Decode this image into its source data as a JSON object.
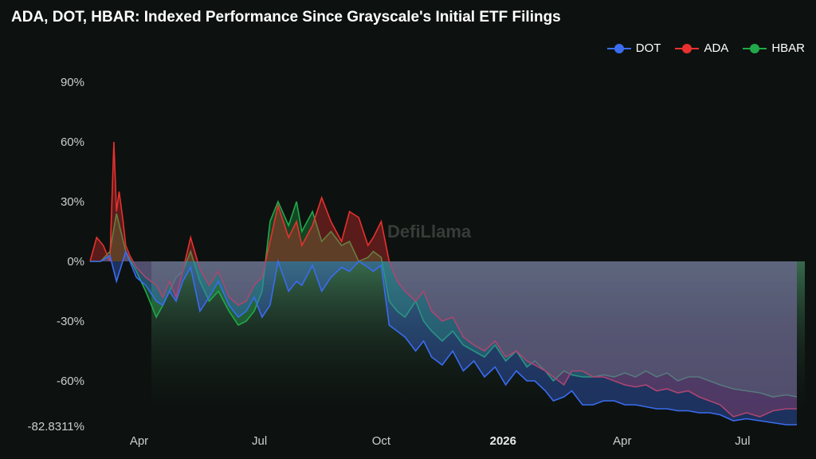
{
  "chart_data": {
    "type": "line",
    "title": "ADA, DOT, HBAR: Indexed Performance Since Grayscale's Initial ETF Filings",
    "watermark": "DefiLlama",
    "y_ticks": [
      "90%",
      "60%",
      "30%",
      "0%",
      "-30%",
      "-60%",
      "-82.8311%"
    ],
    "y_tick_values": [
      90,
      60,
      30,
      0,
      -30,
      -60,
      -82.8311
    ],
    "x_ticks": [
      "Apr",
      "Jul",
      "Oct",
      "2026",
      "Apr",
      "Jul"
    ],
    "x_tick_emphasis": [
      false,
      false,
      false,
      true,
      false,
      false
    ],
    "x_tick_days": [
      37,
      128,
      220,
      312,
      402,
      493
    ],
    "ylim": [
      -82.8311,
      95
    ],
    "xlim": [
      0,
      540
    ],
    "legend_position": "top-right",
    "series": [
      {
        "name": "DOT",
        "color": "#3b6cf0",
        "days": [
          0,
          8,
          15,
          20,
          27,
          35,
          42,
          50,
          55,
          60,
          65,
          70,
          76,
          83,
          90,
          97,
          105,
          112,
          118,
          124,
          130,
          136,
          142,
          150,
          156,
          160,
          168,
          175,
          182,
          190,
          196,
          203,
          210,
          214,
          220,
          226,
          232,
          238,
          246,
          252,
          258,
          266,
          274,
          282,
          290,
          298,
          306,
          314,
          322,
          330,
          336,
          344,
          350,
          358,
          364,
          372,
          380,
          388,
          396,
          404,
          412,
          420,
          428,
          436,
          444,
          452,
          460,
          468,
          476,
          486,
          496,
          506,
          516,
          526,
          534
        ],
        "values": [
          0,
          0,
          3,
          -10,
          5,
          -8,
          -12,
          -20,
          -22,
          -15,
          -20,
          -10,
          -3,
          -25,
          -18,
          -10,
          -22,
          -28,
          -25,
          -18,
          -28,
          -22,
          0,
          -15,
          -10,
          -12,
          -2,
          -15,
          -8,
          -3,
          -5,
          0,
          -3,
          -5,
          -2,
          -32,
          -35,
          -38,
          -45,
          -40,
          -48,
          -52,
          -45,
          -55,
          -50,
          -58,
          -53,
          -62,
          -55,
          -60,
          -60,
          -65,
          -70,
          -68,
          -65,
          -72,
          -72,
          -70,
          -70,
          -72,
          -72,
          -73,
          -74,
          -74,
          -75,
          -75,
          -76,
          -76,
          -77,
          -80,
          -79,
          -80,
          -81,
          -82,
          -82
        ]
      },
      {
        "name": "ADA",
        "color": "#e8302e",
        "days": [
          0,
          5,
          10,
          15,
          18,
          20,
          22,
          25,
          27,
          30,
          35,
          42,
          50,
          55,
          60,
          65,
          70,
          76,
          83,
          90,
          97,
          105,
          112,
          118,
          124,
          130,
          136,
          142,
          150,
          156,
          160,
          168,
          175,
          182,
          190,
          196,
          203,
          210,
          214,
          220,
          226,
          232,
          238,
          246,
          252,
          258,
          266,
          274,
          282,
          290,
          298,
          306,
          314,
          322,
          330,
          336,
          344,
          350,
          358,
          364,
          372,
          380,
          388,
          396,
          404,
          412,
          420,
          428,
          436,
          444,
          452,
          460,
          468,
          476,
          486,
          496,
          506,
          516,
          526,
          534
        ],
        "values": [
          0,
          12,
          8,
          0,
          60,
          25,
          35,
          20,
          8,
          3,
          -3,
          -8,
          -12,
          -18,
          -10,
          -18,
          -5,
          12,
          -4,
          -12,
          -5,
          -18,
          -22,
          -20,
          -12,
          -8,
          10,
          28,
          12,
          20,
          8,
          18,
          32,
          20,
          10,
          25,
          22,
          8,
          12,
          20,
          0,
          -10,
          -15,
          -20,
          -15,
          -25,
          -30,
          -28,
          -38,
          -42,
          -45,
          -40,
          -48,
          -45,
          -50,
          -52,
          -55,
          -58,
          -62,
          -55,
          -55,
          -58,
          -58,
          -60,
          -62,
          -63,
          -62,
          -65,
          -64,
          -66,
          -65,
          -68,
          -70,
          -72,
          -78,
          -76,
          -78,
          -75,
          -74,
          -74
        ]
      },
      {
        "name": "HBAR",
        "color": "#22a84a",
        "days": [
          0,
          8,
          15,
          20,
          27,
          35,
          42,
          50,
          55,
          60,
          65,
          70,
          76,
          83,
          90,
          97,
          105,
          112,
          118,
          124,
          130,
          136,
          142,
          150,
          156,
          160,
          168,
          175,
          182,
          190,
          196,
          203,
          210,
          214,
          220,
          226,
          232,
          238,
          246,
          252,
          258,
          266,
          274,
          282,
          290,
          298,
          306,
          314,
          322,
          330,
          336,
          344,
          350,
          358,
          364,
          372,
          380,
          388,
          396,
          404,
          412,
          420,
          428,
          436,
          444,
          452,
          460,
          468,
          476,
          486,
          496,
          506,
          516,
          526,
          534
        ],
        "values": [
          0,
          0,
          5,
          24,
          5,
          -5,
          -15,
          -28,
          -22,
          -15,
          -8,
          -5,
          5,
          -10,
          -20,
          -15,
          -25,
          -32,
          -30,
          -25,
          -15,
          20,
          30,
          18,
          30,
          15,
          25,
          10,
          15,
          8,
          10,
          0,
          2,
          5,
          2,
          -20,
          -25,
          -28,
          -20,
          -30,
          -35,
          -40,
          -35,
          -42,
          -45,
          -48,
          -42,
          -50,
          -45,
          -53,
          -50,
          -55,
          -60,
          -55,
          -57,
          -58,
          -58,
          -57,
          -58,
          -56,
          -58,
          -55,
          -58,
          -56,
          -60,
          -58,
          -58,
          -60,
          -62,
          -64,
          -65,
          -66,
          -68,
          -67,
          -68
        ]
      }
    ]
  }
}
